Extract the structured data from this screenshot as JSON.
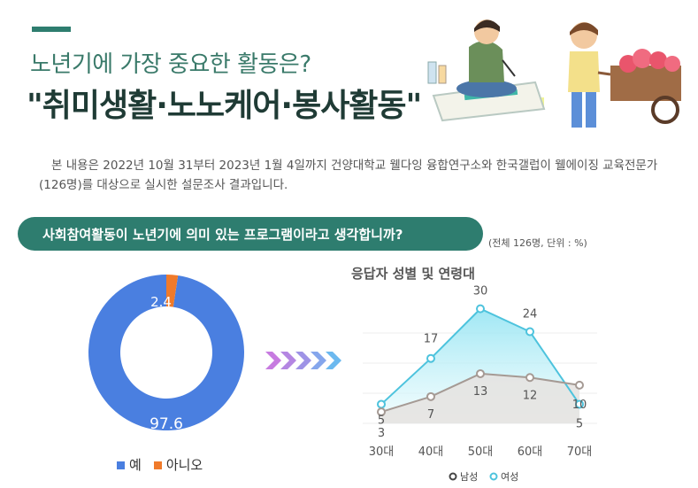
{
  "header": {
    "subtitle": "노년기에 가장 중요한 활동은?",
    "headline": "\"취미생활·노노케어·봉사활동\""
  },
  "intro": "본 내용은  2022년 10월 31부터 2023년 1월 4일까지 건양대학교 웰다잉 융합연구소와 한국갤럽이 웰에이징 교육전문가(126명)를 대상으로 실시한 설문조사 결과입니다.",
  "question": "사회참여활동이 노년기에 의미 있는 프로그램이라고 생각합니까?",
  "unit_note": "(전체 126명, 단위 : %)",
  "illustrations": [
    "painter-illustration",
    "cart-vendor-illustration"
  ],
  "colors": {
    "brand": "#2e7d6f",
    "yes": "#4a7fe0",
    "no": "#f07a2a",
    "male": "#a59a94",
    "female": "#4dc3dd"
  },
  "chart_data": [
    {
      "type": "pie",
      "donut": true,
      "categories": [
        "예",
        "아니오"
      ],
      "values": [
        97.6,
        2.4
      ],
      "labels": [
        "97.6",
        "2.4"
      ],
      "legend": "bottom"
    },
    {
      "type": "line",
      "title": "응답자 성별 및 연령대",
      "categories": [
        "30대",
        "40대",
        "50대",
        "60대",
        "70대"
      ],
      "series": [
        {
          "name": "남성",
          "values": [
            3,
            7,
            13,
            12,
            10
          ],
          "labels": [
            "3",
            "7",
            "13",
            "12",
            "10"
          ]
        },
        {
          "name": "여성",
          "values": [
            5,
            17,
            30,
            24,
            5
          ],
          "labels": [
            "5",
            "17",
            "30",
            "24",
            "5"
          ]
        }
      ],
      "ylim": [
        0,
        32
      ],
      "legend": "bottom"
    }
  ]
}
